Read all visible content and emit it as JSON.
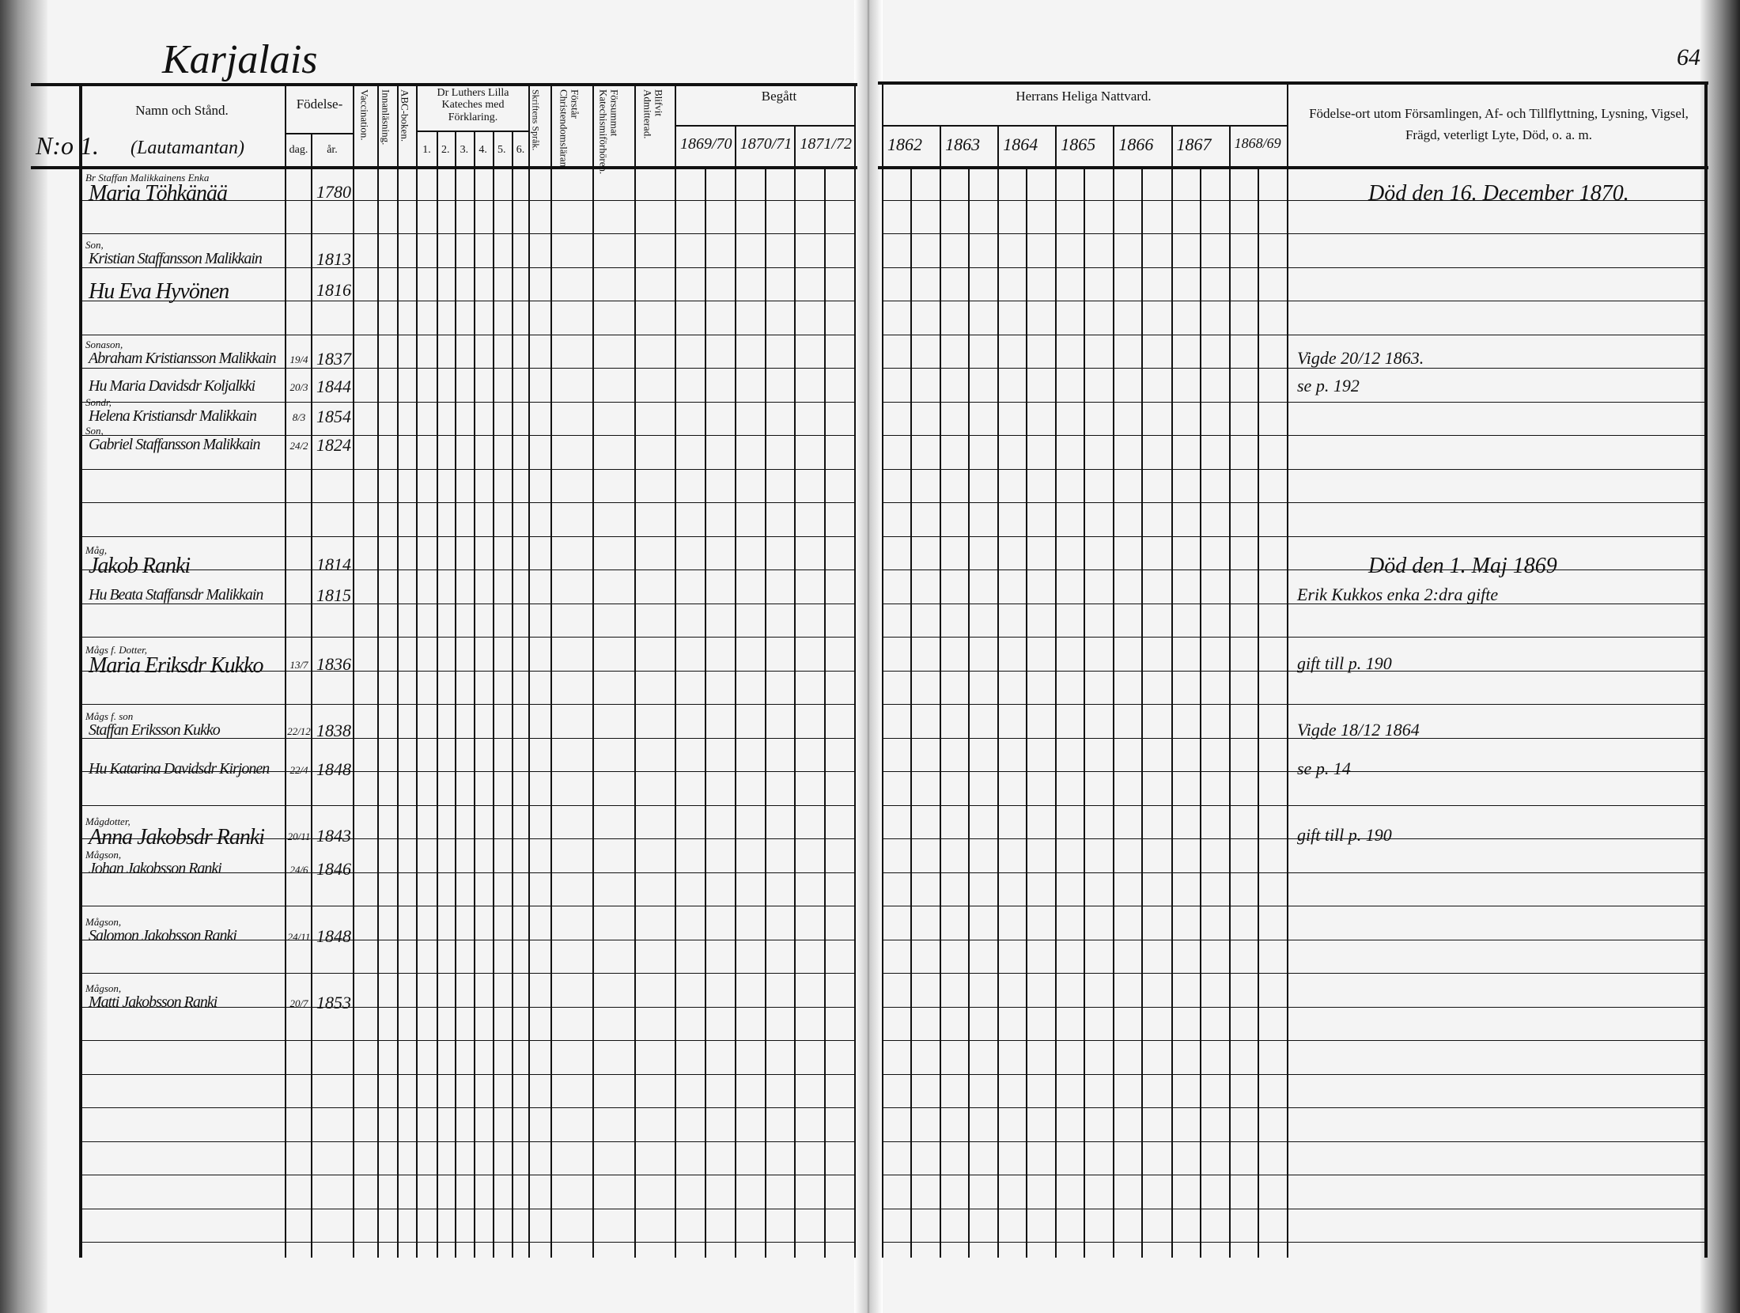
{
  "page": {
    "parish_title": "Karjalais",
    "page_number": "64",
    "household_no": "N:o 1.",
    "household_status": "(Lautamantan)"
  },
  "headers": {
    "name": "Namn och Stånd.",
    "birth": "Födelse-",
    "day": "dag.",
    "year": "år.",
    "vaccination": "Vaccination.",
    "innanlasning": "Innanläsning.",
    "abc": "ABC-boken.",
    "luther": "Dr Luthers Lilla Kateches med Förklaring.",
    "luther_parts": [
      "1.",
      "2.",
      "3.",
      "4.",
      "5.",
      "6."
    ],
    "skrift": "Skriftens Språk.",
    "forstar": "Förstår Christendomsläran.",
    "forsummat": "Försummat Katechismiförhören.",
    "admitterad": "Blifvit Admitterad.",
    "begatt": "Begått",
    "begatt_years": [
      "1869/70",
      "1870/71",
      "1871/72"
    ],
    "nattvard": "Herrans Heliga Nattvard.",
    "nattvard_years": [
      "1862",
      "1863",
      "1864",
      "1865",
      "1866",
      "1867",
      "1868/69"
    ],
    "remarks": "Födelse-ort utom Församlingen, Af- och Tillflyttning, Lysning, Vigsel, Frägd, veterligt Lyte, Död, o. a. m."
  },
  "persons": [
    {
      "relation": "Br Staffan Malikkainens Enka",
      "name": "Maria Töhkänää",
      "day": "",
      "year": "1780",
      "remark": "Död den 16. December 1870."
    },
    {
      "relation": "Son,",
      "name": "Kristian Staffansson Malikkain",
      "day": "",
      "year": "1813",
      "remark": ""
    },
    {
      "relation": "",
      "name": "Hu Eva Hyvönen",
      "day": "",
      "year": "1816",
      "remark": ""
    },
    {
      "relation": "Sonason,",
      "name": "Abraham Kristiansson Malikkain",
      "day": "19/4",
      "year": "1837",
      "remark": "Vigde 20/12 1863."
    },
    {
      "relation": "",
      "name": "Hu Maria Davidsdr Koljalkki",
      "day": "20/3",
      "year": "1844",
      "remark": "se p. 192"
    },
    {
      "relation": "Sondr,",
      "name": "Helena Kristiansdr Malikkain",
      "day": "8/3",
      "year": "1854",
      "remark": ""
    },
    {
      "relation": "Son,",
      "name": "Gabriel Staffansson Malikkain",
      "day": "24/2",
      "year": "1824",
      "remark": ""
    },
    {
      "relation": "Måg,",
      "name": "Jakob Ranki",
      "day": "",
      "year": "1814",
      "remark": "Död den 1. Maj 1869"
    },
    {
      "relation": "",
      "name": "Hu Beata Staffansdr Malikkain",
      "day": "",
      "year": "1815",
      "remark": "Erik Kukkos enka 2:dra gifte"
    },
    {
      "relation": "Mågs f. Dotter,",
      "name": "Maria Eriksdr Kukko",
      "day": "13/7",
      "year": "1836",
      "remark": "gift till p. 190"
    },
    {
      "relation": "Mågs f. son",
      "name": "Staffan Eriksson Kukko",
      "day": "22/12",
      "year": "1838",
      "remark": "Vigde 18/12 1864"
    },
    {
      "relation": "",
      "name": "Hu Katarina Davidsdr Kirjonen",
      "day": "22/4",
      "year": "1848",
      "remark": "se p. 14"
    },
    {
      "relation": "Mågdotter,",
      "name": "Anna Jakobsdr Ranki",
      "day": "20/11",
      "year": "1843",
      "remark": "gift till p. 190"
    },
    {
      "relation": "Mågson,",
      "name": "Johan Jakobsson Ranki",
      "day": "24/6",
      "year": "1846",
      "remark": ""
    },
    {
      "relation": "Mågson,",
      "name": "Salomon Jakobsson Ranki",
      "day": "24/11",
      "year": "1848",
      "remark": ""
    },
    {
      "relation": "Mågson,",
      "name": "Matti Jakobsson Ranki",
      "day": "20/7",
      "year": "1853",
      "remark": ""
    }
  ]
}
